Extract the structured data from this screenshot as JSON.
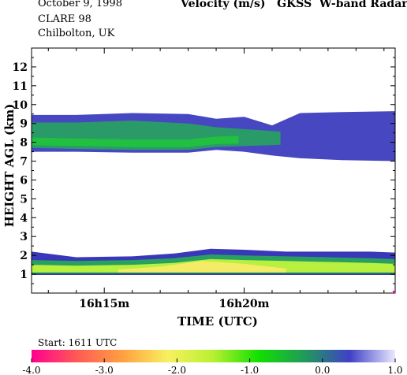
{
  "header": {
    "date": "October   9, 1998",
    "campaign": "CLARE 98",
    "location": "Chilbolton, UK",
    "title": "Velocity (m/s)   GKSS  W-band Radar"
  },
  "start_label": "Start: 1611 UTC",
  "chart_data": {
    "type": "heatmap",
    "title": "Velocity (m/s)   GKSS  W-band Radar",
    "xlabel": "TIME (UTC)",
    "ylabel": "HEIGHT AGL (km)",
    "ylim": [
      0,
      13
    ],
    "xlim_minutes": [
      12.4,
      25.4
    ],
    "x_ticks": [
      {
        "minute": 15,
        "label": "16h15m"
      },
      {
        "minute": 20,
        "label": "16h20m"
      }
    ],
    "y_ticks": [
      1,
      2,
      3,
      4,
      5,
      6,
      7,
      8,
      9,
      10,
      11,
      12
    ],
    "grid": false,
    "colorbar": {
      "min": -4.0,
      "max": 1.0,
      "ticks": [
        "-4.0",
        "-3.0",
        "-2.0",
        "-1.0",
        "0.0",
        "1.0"
      ],
      "colors": [
        "#ff0090",
        "#ff5a55",
        "#ffa040",
        "#f8f060",
        "#b8f030",
        "#10e000",
        "#209a5a",
        "#4040c8",
        "#e8e8ff"
      ]
    },
    "layers": [
      {
        "name": "upper cloud",
        "minute": [
          12.4,
          14.0,
          16.0,
          18.0,
          19.0,
          20.0,
          21.0,
          22.0,
          23.5,
          25.4
        ],
        "base_km": [
          7.5,
          7.5,
          7.45,
          7.45,
          7.6,
          7.5,
          7.3,
          7.15,
          7.05,
          7.0
        ],
        "top_km": [
          9.45,
          9.45,
          9.55,
          9.5,
          9.25,
          9.35,
          8.9,
          9.55,
          9.6,
          9.65
        ],
        "core_base_km": [
          7.7,
          7.65,
          7.6,
          7.6,
          7.75,
          7.8,
          7.85,
          7.9,
          7.9,
          7.9
        ],
        "core_top_km": [
          9.05,
          9.05,
          9.15,
          9.0,
          8.8,
          8.7,
          8.6,
          8.5,
          8.4,
          8.3
        ],
        "core_end_minute": 21.3
      },
      {
        "name": "lower cloud",
        "minute": [
          12.4,
          14.0,
          16.0,
          17.5,
          18.8,
          20.0,
          21.5,
          23.0,
          24.5,
          25.4
        ],
        "base_km": [
          1.0,
          1.0,
          1.0,
          1.0,
          1.0,
          1.0,
          1.0,
          1.0,
          1.0,
          1.0
        ],
        "top_km": [
          2.2,
          1.9,
          1.95,
          2.1,
          2.35,
          2.3,
          2.2,
          2.2,
          2.2,
          2.15
        ],
        "core_top_km": [
          1.75,
          1.7,
          1.75,
          1.85,
          2.05,
          2.0,
          1.95,
          1.9,
          1.85,
          1.8
        ]
      }
    ]
  }
}
